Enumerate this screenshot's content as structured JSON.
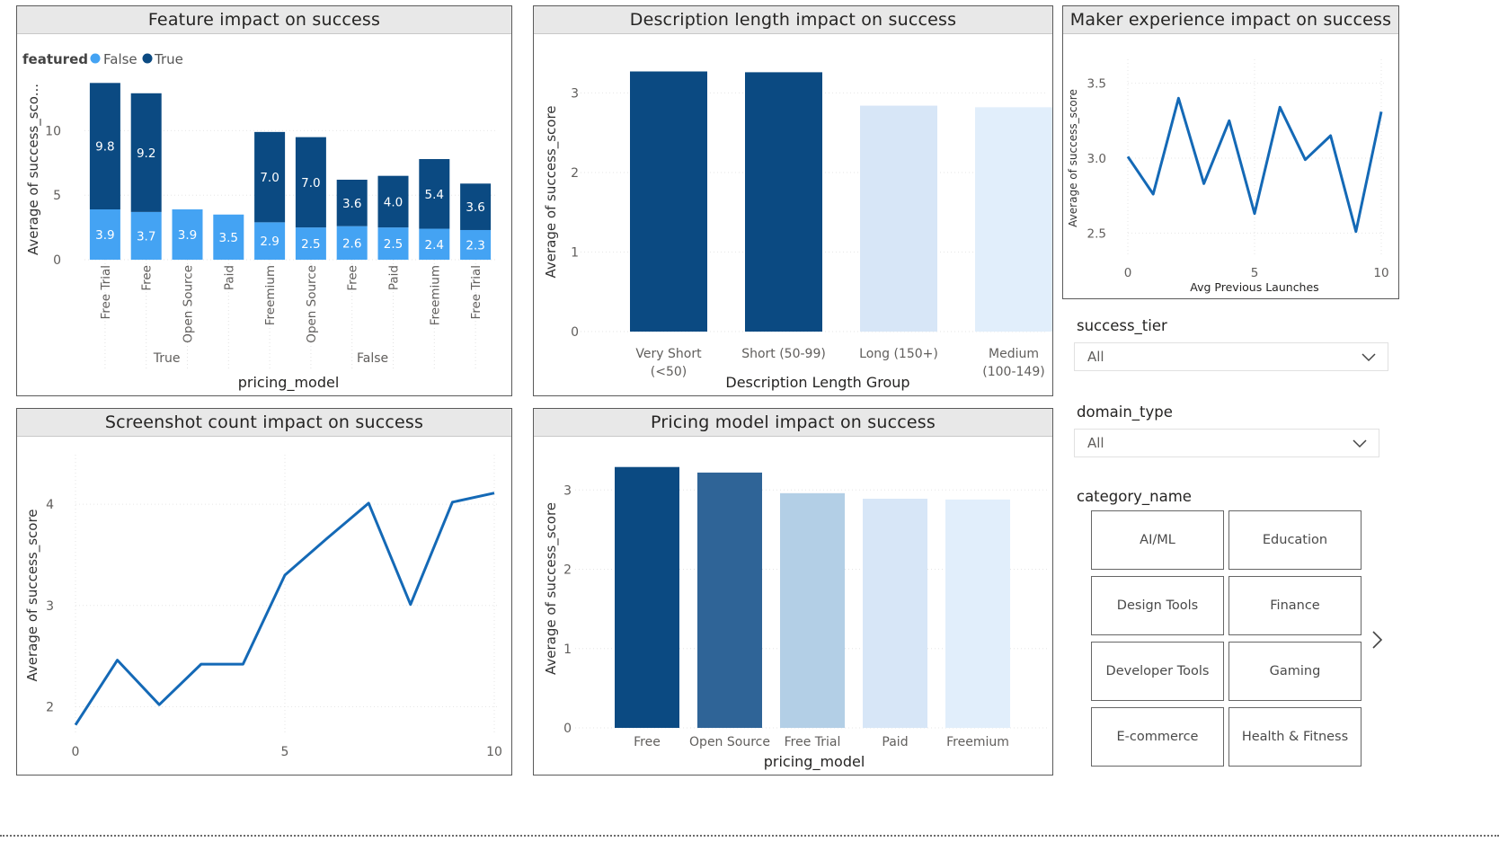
{
  "colors": {
    "dark_blue": "#0b4a82",
    "light_blue": "#44a3f3",
    "mid_blue": "#2f6497",
    "pale1": "#b3cfe6",
    "pale2": "#d7e6f7",
    "pale3": "#e1eefb",
    "line_blue": "#1469b6"
  },
  "panels": {
    "feature": {
      "title": "Feature impact on success"
    },
    "description": {
      "title": "Description length impact on success"
    },
    "maker": {
      "title": "Maker experience impact on success"
    },
    "screenshot": {
      "title": "Screenshot count impact on success"
    },
    "pricing": {
      "title": "Pricing model impact on success"
    }
  },
  "slicers": {
    "success_tier": {
      "label": "success_tier",
      "value": "All"
    },
    "domain_type": {
      "label": "domain_type",
      "value": "All"
    },
    "category_name": {
      "label": "category_name",
      "tiles": [
        "AI/ML",
        "Education",
        "Design Tools",
        "Finance",
        "Developer Tools",
        "Gaming",
        "E-commerce",
        "Health & Fitness"
      ]
    }
  },
  "chart_data": [
    {
      "id": "feature",
      "type": "bar",
      "stacked": true,
      "legend_title": "featured",
      "legend": [
        "False",
        "True"
      ],
      "xlabel": "pricing_model",
      "ylabel": "Average of success_sco...",
      "ylim": [
        0,
        14
      ],
      "yticks": [
        0,
        5,
        10
      ],
      "groups": [
        {
          "label": "True",
          "categories": [
            "Free Trial",
            "Free",
            "Open Source",
            "Paid"
          ]
        },
        {
          "label": "False",
          "categories": [
            "Freemium",
            "Open Source",
            "Free",
            "Paid",
            "Freemium",
            "Free Trial"
          ]
        }
      ],
      "categories": [
        "Free Trial",
        "Free",
        "Open Source",
        "Paid",
        "Freemium",
        "Open Source",
        "Free",
        "Paid",
        "Freemium",
        "Free Trial"
      ],
      "series": [
        {
          "name": "False",
          "values": [
            3.9,
            3.7,
            3.9,
            3.5,
            2.9,
            2.5,
            2.6,
            2.5,
            2.4,
            2.3
          ],
          "labels": [
            "3.9",
            "3.7",
            "3.9",
            "3.5",
            "2.9",
            "2.5",
            "2.6",
            "2.5",
            "2.4",
            "2.3"
          ]
        },
        {
          "name": "True",
          "values": [
            9.8,
            9.2,
            0,
            0,
            7.0,
            7.0,
            3.6,
            4.0,
            5.4,
            3.6
          ],
          "labels": [
            "9.8",
            "9.2",
            "",
            "",
            "7.0",
            "7.0",
            "3.6",
            "4.0",
            "5.4",
            "3.6"
          ]
        }
      ]
    },
    {
      "id": "description",
      "type": "bar",
      "xlabel": "Description Length Group",
      "ylabel": "Average of success_score",
      "ylim": [
        0,
        3.4
      ],
      "yticks": [
        0,
        1,
        2,
        3
      ],
      "categories": [
        [
          "Very Short",
          "(<50)"
        ],
        [
          "Short (50-99)"
        ],
        [
          "Long (150+)"
        ],
        [
          "Medium",
          "(100-149)"
        ]
      ],
      "values": [
        3.27,
        3.26,
        2.84,
        2.82
      ]
    },
    {
      "id": "maker",
      "type": "line",
      "xlabel": "Avg Previous Launches",
      "ylabel": "Average of success_score",
      "xlim": [
        0,
        10
      ],
      "ylim": [
        2.4,
        3.6
      ],
      "xticks": [
        0,
        5,
        10
      ],
      "yticks": [
        "2.5",
        "3.0",
        "3.5"
      ],
      "x": [
        0,
        1,
        2,
        3,
        4,
        5,
        6,
        7,
        8,
        9,
        10
      ],
      "y": [
        3.01,
        2.76,
        3.4,
        2.83,
        3.25,
        2.63,
        3.34,
        2.99,
        3.15,
        2.51,
        3.31
      ]
    },
    {
      "id": "screenshot",
      "type": "line",
      "xlabel": "screenshot_count",
      "ylabel": "Average of success_score",
      "xlim": [
        0,
        10
      ],
      "ylim": [
        1.8,
        4.4
      ],
      "xticks": [
        0,
        5,
        10
      ],
      "yticks": [
        2,
        3,
        4
      ],
      "x": [
        0,
        1,
        2,
        3,
        4,
        5,
        6,
        7,
        8,
        9,
        10
      ],
      "y": [
        1.82,
        2.46,
        2.02,
        2.42,
        2.42,
        3.3,
        3.66,
        4.01,
        3.01,
        4.02,
        4.11
      ]
    },
    {
      "id": "pricing",
      "type": "bar",
      "xlabel": "pricing_model",
      "ylabel": "Average of success_score",
      "ylim": [
        0,
        3.4
      ],
      "yticks": [
        0,
        1,
        2,
        3
      ],
      "categories": [
        "Free",
        "Open Source",
        "Free Trial",
        "Paid",
        "Freemium"
      ],
      "values": [
        3.29,
        3.22,
        2.96,
        2.89,
        2.88
      ]
    }
  ]
}
